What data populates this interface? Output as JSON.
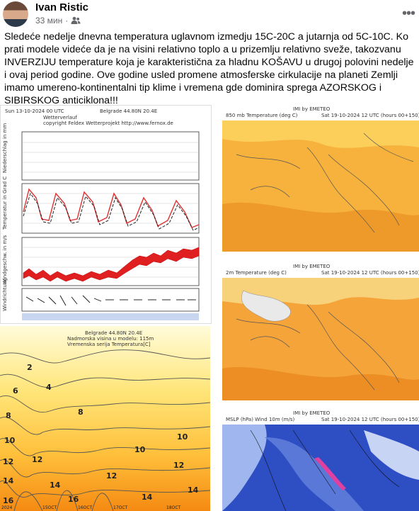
{
  "post": {
    "author": "Ivan Ristic",
    "time": "33 мин",
    "audience_icon": "friends-icon",
    "menu_icon": "more-dots-icon",
    "text": "Sledeće nedelje dnevna temperatura uglavnom izmedju 15C-20C a jutarnja od 5C-10C. Ko prati modele videće da je na visini relativno toplo a u prizemlju relativno sveže, takozvanu INVERZIJU temperature koja je karakteristična za hladnu KOŠAVU u drugoj polovini nedelje i ovaj period godine. Ove godine usled promene atmosferske cirkulacije na planeti Zemlji imamo umereno-kontinentalni tip klime i vremena gde dominira sprega AZORSKOG i SIBIRSKOG anticiklona!!!"
  },
  "meteogram": {
    "header_left": "Sun 13-10-2024 00 UTC",
    "header_right": "Belgrade  44.80N  20.4E",
    "subtitle1": "Wetterverlauf",
    "subtitle2": "copyright Feldex Wetterprojekt  http://www.fernox.de",
    "panel_labels": [
      "Niederschlag in mm",
      "Temperatur in Grad C",
      "Windgeschw. in m/s",
      "Windrichtung"
    ]
  },
  "cross_section": {
    "title1": "Belgrade  44.80N  20.4E",
    "title2": "Nadmorska visina u modelu: 115m",
    "title3": "Vremenska serija Temperatura[C]",
    "contour_labels": [
      "2",
      "4",
      "6",
      "8",
      "10",
      "12",
      "14",
      "16",
      "8",
      "10",
      "12",
      "14",
      "16",
      "12",
      "14",
      "10",
      "12",
      "14"
    ],
    "x_labels": [
      "2024",
      "15OCT",
      "16OCT",
      "17OCT",
      "18OCT"
    ]
  },
  "maps": [
    {
      "header": "IMI by EMETEO",
      "title": "850 mb Temperature (deg C)",
      "valid": "Sat 19-10-2024 12 UTC (hours 00+150)"
    },
    {
      "header": "IMI by EMETEO",
      "title": "2m Temperature (deg C)",
      "valid": "Sat 19-10-2024 12 UTC (hours 00+150)"
    },
    {
      "header": "IMI by EMETEO",
      "title": "MSLP (hPa)  Wind 10m (m/s)",
      "valid": "Sat 19-10-2024 12 UTC (hours 00+150)"
    }
  ]
}
